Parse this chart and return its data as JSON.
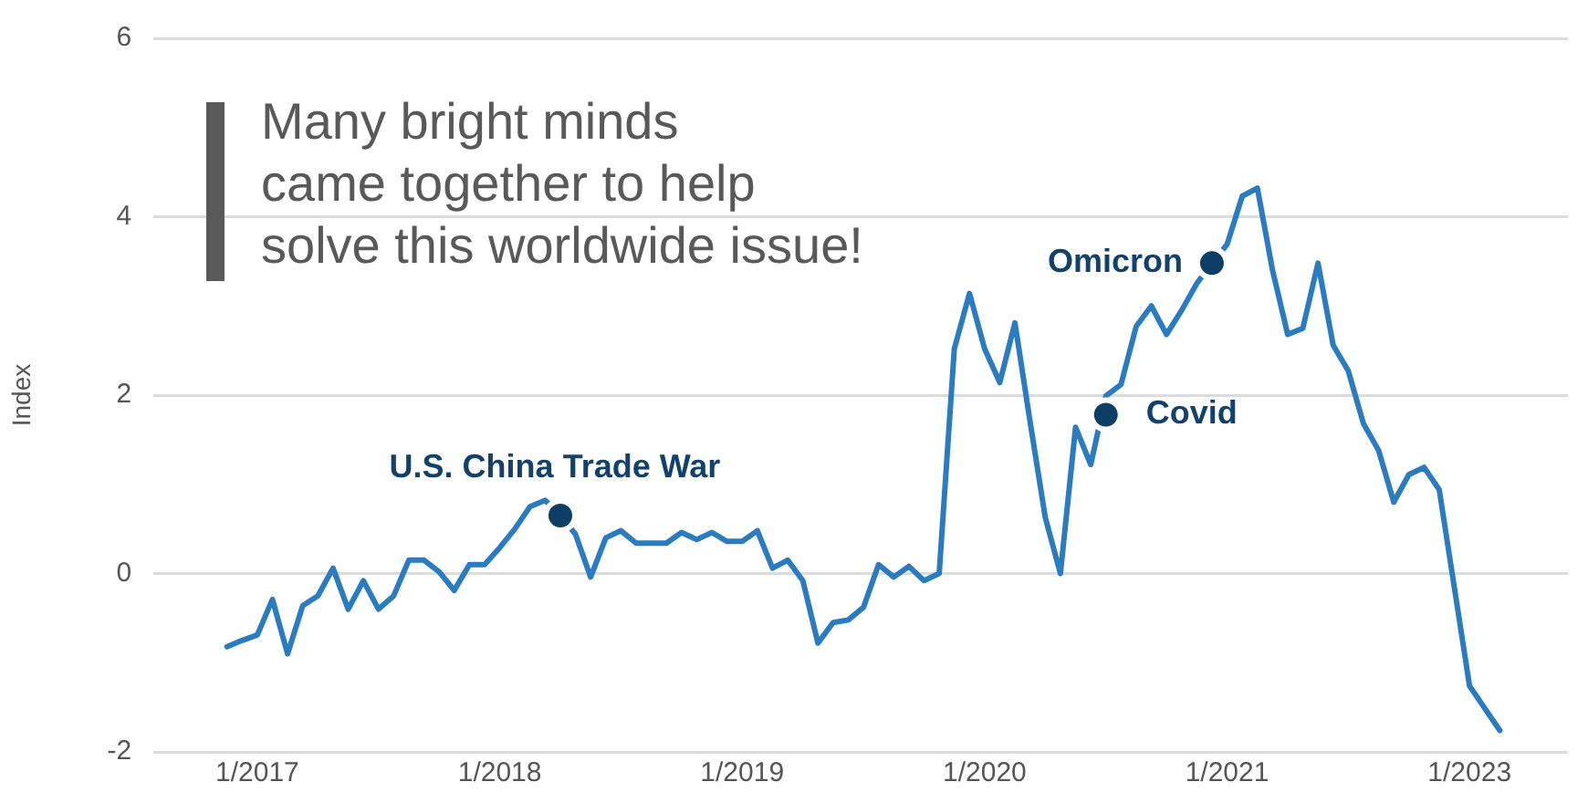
{
  "chart_data": {
    "type": "line",
    "ylabel": "Index",
    "categories": [
      null,
      null,
      "1/2017",
      null,
      null,
      null,
      null,
      null,
      null,
      null,
      null,
      null,
      null,
      null,
      null,
      null,
      null,
      null,
      "1/2018",
      null,
      null,
      null,
      null,
      null,
      null,
      null,
      null,
      null,
      null,
      null,
      null,
      null,
      null,
      null,
      "1/2019",
      null,
      null,
      null,
      null,
      null,
      null,
      null,
      null,
      null,
      null,
      null,
      null,
      null,
      null,
      null,
      "1/2020",
      null,
      null,
      null,
      null,
      null,
      null,
      null,
      null,
      null,
      null,
      null,
      null,
      null,
      null,
      null,
      "1/2021",
      null,
      null,
      null,
      null,
      null,
      null,
      null,
      null,
      null,
      null,
      null,
      null,
      null,
      null,
      null,
      "1/2023",
      null,
      null
    ],
    "series": [
      {
        "color": "#2a7bbf",
        "values": [
          -0.82,
          -0.75,
          -0.69,
          -0.29,
          -0.9,
          -0.36,
          -0.25,
          0.06,
          -0.4,
          -0.08,
          -0.4,
          -0.25,
          0.15,
          0.15,
          0.02,
          -0.19,
          0.1,
          0.1,
          0.29,
          0.5,
          0.75,
          0.82,
          0.65,
          0.44,
          -0.04,
          0.4,
          0.48,
          0.34,
          0.34,
          0.34,
          0.46,
          0.38,
          0.46,
          0.36,
          0.36,
          0.48,
          0.06,
          0.15,
          -0.08,
          -0.78,
          -0.55,
          -0.52,
          -0.38,
          0.1,
          -0.04,
          0.08,
          -0.08,
          0,
          2.52,
          3.14,
          2.52,
          2.14,
          2.81,
          1.7,
          0.63,
          0,
          1.64,
          1.22,
          1.99,
          2.12,
          2.77,
          3,
          2.68,
          2.95,
          3.25,
          3.48,
          3.69,
          4.23,
          4.32,
          3.4,
          2.68,
          2.75,
          3.48,
          2.56,
          2.27,
          1.68,
          1.38,
          0.8,
          1.11,
          1.19,
          0.94,
          -0.16,
          -1.26,
          -1.51,
          -1.76
        ]
      },
      {
        "type": "scatter",
        "marker": "circle",
        "color": "#0d3f66",
        "values": [
          null,
          null,
          null,
          null,
          null,
          null,
          null,
          null,
          null,
          null,
          null,
          null,
          null,
          null,
          null,
          null,
          null,
          null,
          null,
          null,
          null,
          null,
          0.65,
          null,
          null,
          null,
          null,
          null,
          null,
          null,
          null,
          null,
          null,
          null,
          null,
          null,
          null,
          null,
          null,
          null,
          null,
          null,
          null,
          null,
          null,
          null,
          null,
          null,
          null,
          null,
          null,
          null,
          null,
          null,
          null,
          null,
          null,
          null,
          1.78,
          null,
          null,
          null,
          null,
          null,
          null,
          3.48,
          null,
          null,
          null,
          null,
          null,
          null,
          null,
          null,
          null,
          null,
          null,
          null,
          null,
          null,
          null,
          null,
          null,
          null,
          null
        ]
      }
    ],
    "ylim": [
      -2,
      6
    ],
    "yticks": [
      -2,
      0,
      2,
      4,
      6
    ],
    "grid": "y",
    "marker": "none",
    "line_style": "solid",
    "annotations": [
      "Many bright minds\ncame together to help\nsolve this worldwide issue!",
      "U.S. China Trade War",
      "Covid",
      "Omicron"
    ]
  }
}
